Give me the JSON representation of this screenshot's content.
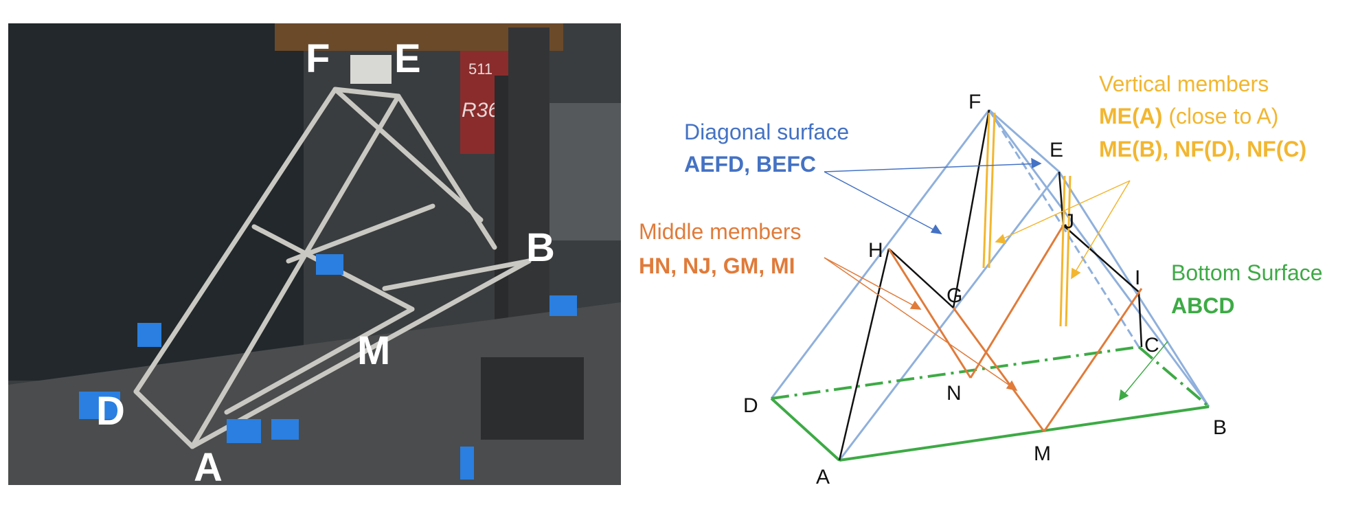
{
  "photo": {
    "labels": {
      "F": "F",
      "E": "E",
      "B": "B",
      "M": "M",
      "D": "D",
      "A": "A"
    },
    "background_signs": [
      "511",
      "R36"
    ]
  },
  "diagram": {
    "points": {
      "F": "F",
      "E": "E",
      "H": "H",
      "J": "J",
      "I": "I",
      "G": "G",
      "C": "C",
      "D": "D",
      "N": "N",
      "B": "B",
      "M": "M",
      "A": "A"
    },
    "annotations": {
      "diagonal_surface": {
        "title": "Diagonal surface",
        "members": "AEFD, BEFC"
      },
      "middle_members": {
        "title": "Middle members",
        "members": "HN, NJ, GM, MI"
      },
      "vertical_members": {
        "title": "Vertical members",
        "line1_bold": "ME(A)",
        "line1_rest": " (close to A)",
        "line2": "ME(B), NF(D), NF(C)"
      },
      "bottom_surface": {
        "title": "Bottom Surface",
        "members": "ABCD"
      }
    },
    "colors": {
      "diagonal": "#4472c4",
      "diagonal_lines": "#8fb0dc",
      "middle": "#e07b3a",
      "vertical": "#f2b630",
      "bottom": "#3daa45",
      "black": "#111111"
    }
  }
}
